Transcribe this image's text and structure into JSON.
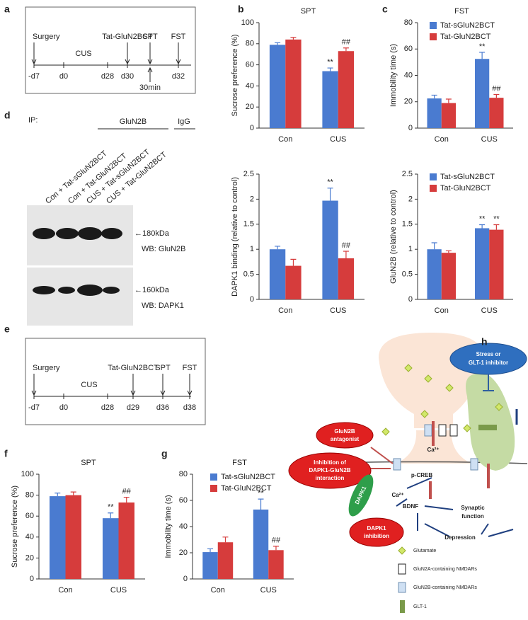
{
  "panel_labels": [
    "a",
    "b",
    "c",
    "d",
    "e",
    "f",
    "g",
    "h"
  ],
  "timeline_a": {
    "events": [
      "Surgery",
      "Tat-GluN2BCT",
      "SPT",
      "FST"
    ],
    "period": "CUS",
    "days": [
      "-d7",
      "d0",
      "d28",
      "d30",
      "d32"
    ],
    "delay": "30min"
  },
  "timeline_e": {
    "events": [
      "Surgery",
      "Tat-GluN2BCT",
      "SPT",
      "FST"
    ],
    "period": "CUS",
    "days": [
      "-d7",
      "d0",
      "d28",
      "d29",
      "d36",
      "d38"
    ]
  },
  "blot": {
    "ip": "IP:",
    "antibody": "GluN2B",
    "control": "IgG",
    "lanes": [
      "Con + Tat-sGluN2BCT",
      "Con + Tat-GluN2BCT",
      "CUS + Tat-sGluN2BCT",
      "CUS + Tat-GluN2BCT"
    ],
    "markers": [
      "←180kDa",
      "←160kDa"
    ],
    "probes": [
      "WB: GluN2B",
      "WB: DAPK1"
    ]
  },
  "chart_data": [
    {
      "type": "bar",
      "title": "SPT",
      "y_label": "Sucrose preference (%)",
      "categories": [
        "Con",
        "CUS"
      ],
      "series": [
        {
          "color": "#4a7bd0",
          "values": [
            79,
            54
          ],
          "errors": [
            2,
            3
          ],
          "annotations": [
            null,
            "**"
          ]
        },
        {
          "color": "#d63c3c",
          "values": [
            84,
            73
          ],
          "errors": [
            2,
            3
          ],
          "annotations": [
            null,
            "##"
          ]
        }
      ],
      "ylim": [
        0,
        100
      ],
      "yticks": [
        0,
        20,
        40,
        60,
        80,
        100
      ]
    },
    {
      "type": "bar",
      "title": "FST",
      "y_label": "Immobility time (s)",
      "categories": [
        "Con",
        "CUS"
      ],
      "legend": "upper right",
      "series": [
        {
          "name": "Tat-sGluN2BCT",
          "color": "#4a7bd0",
          "values": [
            22.5,
            52.5
          ],
          "errors": [
            2.5,
            5
          ],
          "annotations": [
            null,
            "**"
          ]
        },
        {
          "name": "Tat-GluN2BCT",
          "color": "#d63c3c",
          "values": [
            19,
            23
          ],
          "errors": [
            3,
            2.5
          ],
          "annotations": [
            null,
            "##"
          ]
        }
      ],
      "ylim": [
        0,
        80
      ],
      "yticks": [
        0,
        20,
        40,
        60,
        80
      ]
    },
    {
      "type": "bar",
      "y_label": "DAPK1 binding (relative to control)",
      "categories": [
        "Con",
        "CUS"
      ],
      "series": [
        {
          "color": "#4a7bd0",
          "values": [
            1.0,
            1.97
          ],
          "errors": [
            0.06,
            0.25
          ],
          "annotations": [
            null,
            "**"
          ]
        },
        {
          "color": "#d63c3c",
          "values": [
            0.67,
            0.82
          ],
          "errors": [
            0.13,
            0.14
          ],
          "annotations": [
            null,
            "##"
          ]
        }
      ],
      "ylim": [
        0,
        2.5
      ],
      "yticks": [
        0,
        0.5,
        1,
        1.5,
        2,
        2.5
      ]
    },
    {
      "type": "bar",
      "y_label": "GluN2B (relative to control)",
      "categories": [
        "Con",
        "CUS"
      ],
      "legend": "upper right",
      "series": [
        {
          "name": "Tat-sGluN2BCT",
          "color": "#4a7bd0",
          "values": [
            1.0,
            1.42
          ],
          "errors": [
            0.13,
            0.07
          ],
          "annotations": [
            null,
            "**"
          ]
        },
        {
          "name": "Tat-GluN2BCT",
          "color": "#d63c3c",
          "values": [
            0.93,
            1.39
          ],
          "errors": [
            0.04,
            0.1
          ],
          "annotations": [
            null,
            "**"
          ]
        }
      ],
      "ylim": [
        0,
        2.5
      ],
      "yticks": [
        0,
        0.5,
        1,
        1.5,
        2,
        2.5
      ]
    },
    {
      "type": "bar",
      "title": "SPT",
      "y_label": "Sucrose preference (%)",
      "categories": [
        "Con",
        "CUS"
      ],
      "series": [
        {
          "color": "#4a7bd0",
          "values": [
            79,
            58
          ],
          "errors": [
            3,
            5
          ],
          "annotations": [
            null,
            "**"
          ]
        },
        {
          "color": "#d63c3c",
          "values": [
            80,
            73
          ],
          "errors": [
            3,
            5
          ],
          "annotations": [
            null,
            "##"
          ]
        }
      ],
      "ylim": [
        0,
        100
      ],
      "yticks": [
        0,
        20,
        40,
        60,
        80,
        100
      ]
    },
    {
      "type": "bar",
      "title": "FST",
      "y_label": "Immobility time (s)",
      "categories": [
        "Con",
        "CUS"
      ],
      "legend": "upper right",
      "series": [
        {
          "name": "Tat-sGluN2BCT",
          "color": "#4a7bd0",
          "values": [
            20.5,
            53
          ],
          "errors": [
            2.5,
            8
          ],
          "annotations": [
            null,
            "**"
          ]
        },
        {
          "name": "Tat-GluN2BCT",
          "color": "#d63c3c",
          "values": [
            28,
            22
          ],
          "errors": [
            4,
            3
          ],
          "annotations": [
            null,
            "##"
          ]
        }
      ],
      "ylim": [
        0,
        80
      ],
      "yticks": [
        0,
        20,
        40,
        60,
        80
      ]
    }
  ],
  "diagram": {
    "stress": [
      "Stress or",
      "GLT-1 inhibitor"
    ],
    "antagonist": [
      "GluN2B",
      "antagonist"
    ],
    "interaction": [
      "Inhibition of",
      "DAPK1-GluN2B",
      "interaction"
    ],
    "dapk1_inhibition": [
      "DAPK1",
      "inhibition"
    ],
    "dapk1": "DAPK1",
    "calcium": "Ca²⁺",
    "pcreb": "p-CREB",
    "bdnf": "BDNF",
    "synaptic": [
      "Synaptic",
      "function"
    ],
    "depression": "Depression",
    "legend": [
      "Glutamate",
      "GluN2A-containing NMDARs",
      "GluN2B-containing NMDARs",
      "GLT-1"
    ]
  }
}
